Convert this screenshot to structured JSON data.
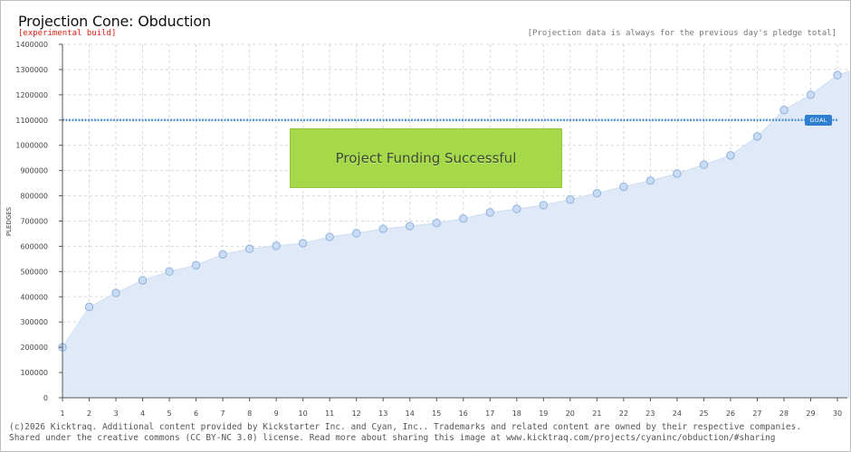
{
  "header": {
    "title": "Projection Cone: Obduction",
    "subtitle": "[experimental build]",
    "note": "[Projection data is always for the previous day's pledge total]"
  },
  "banner": {
    "text": "Project Funding Successful"
  },
  "goal": {
    "label": "GOAL",
    "value": 1100000
  },
  "footer": {
    "line1": "(c)2026 Kicktraq. Additional content provided by Kickstarter Inc. and Cyan, Inc.. Trademarks and related content are owned by their respective companies.",
    "line2": "Shared under the creative commons (CC BY-NC 3.0) license. Read more about sharing this image at www.kicktraq.com/projects/cyaninc/obduction/#sharing"
  },
  "colors": {
    "area_fill": "#dfe9f7",
    "point_fill": "#c9dcf3",
    "point_stroke": "#8fb2de",
    "goal_line": "#5a95d6",
    "banner": "#a6d94a",
    "grid": "#d8d8d8"
  },
  "chart_data": {
    "type": "area",
    "title": "Projection Cone: Obduction",
    "xlabel": "",
    "ylabel": "PLEDGES",
    "x": [
      1,
      2,
      3,
      4,
      5,
      6,
      7,
      8,
      9,
      10,
      11,
      12,
      13,
      14,
      15,
      16,
      17,
      18,
      19,
      20,
      21,
      22,
      23,
      24,
      25,
      26,
      27,
      28,
      29,
      30
    ],
    "y": [
      200000,
      360000,
      415000,
      465000,
      500000,
      525000,
      568000,
      590000,
      602000,
      612000,
      637000,
      652000,
      669000,
      680000,
      692000,
      710000,
      734000,
      748000,
      763000,
      785000,
      810000,
      836000,
      860000,
      888000,
      923000,
      960000,
      1035000,
      1140000,
      1200000,
      1278000
    ],
    "ylim": [
      0,
      1400000
    ],
    "xlim": [
      1,
      30
    ],
    "yticks": [
      0,
      100000,
      200000,
      300000,
      400000,
      500000,
      600000,
      700000,
      800000,
      900000,
      1000000,
      1100000,
      1200000,
      1300000,
      1400000
    ],
    "ytick_labels": [
      "0",
      "100000",
      "200000",
      "300000",
      "400000",
      "500000",
      "600000",
      "700000",
      "800000",
      "900000",
      "1000000",
      "1100000",
      "1200000",
      "1300000",
      "1400000"
    ],
    "xtick_labels": [
      "1",
      "2",
      "3",
      "4",
      "5",
      "6",
      "7",
      "8",
      "9",
      "10",
      "11",
      "12",
      "13",
      "14",
      "15",
      "16",
      "17",
      "18",
      "19",
      "20",
      "21",
      "22",
      "23",
      "24",
      "25",
      "26",
      "27",
      "28",
      "29",
      "30"
    ],
    "grid": true
  }
}
